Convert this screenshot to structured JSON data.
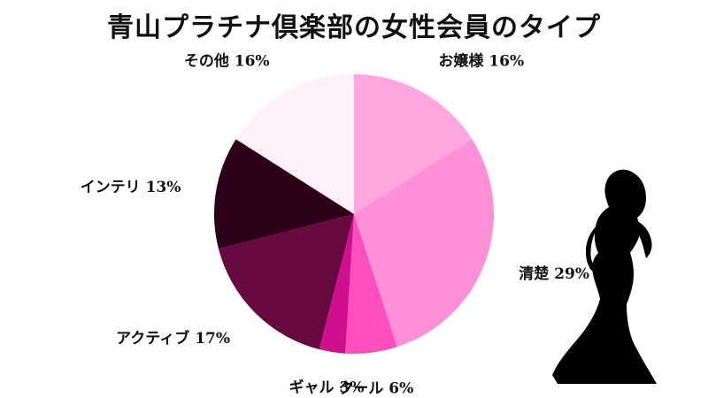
{
  "chart_data": {
    "type": "pie",
    "title": "青山プラチナ倶楽部の女性会員のタイプ",
    "start": "top, clockwise",
    "slices": [
      {
        "label": "お嬢様",
        "value": 16,
        "display": "お嬢様 16%",
        "color": "#ffa6de"
      },
      {
        "label": "清楚",
        "value": 29,
        "display": "清楚 29%",
        "color": "#ff8fd6"
      },
      {
        "label": "クール",
        "value": 6,
        "display": "クール 6%",
        "color": "#ff4fbe"
      },
      {
        "label": "ギャル",
        "value": 3,
        "display": "ギャル 3%",
        "color": "#cf0f8e"
      },
      {
        "label": "アクティブ",
        "value": 17,
        "display": "アクティブ 17%",
        "color": "#660a40"
      },
      {
        "label": "インテリ",
        "value": 13,
        "display": "インテリ 13%",
        "color": "#2c0019"
      },
      {
        "label": "その他",
        "value": 16,
        "display": "その他 16%",
        "color": "#ffeff8"
      }
    ],
    "legend": "none"
  },
  "decoration": {
    "icon": "woman-silhouette-icon",
    "color": "#000000"
  }
}
